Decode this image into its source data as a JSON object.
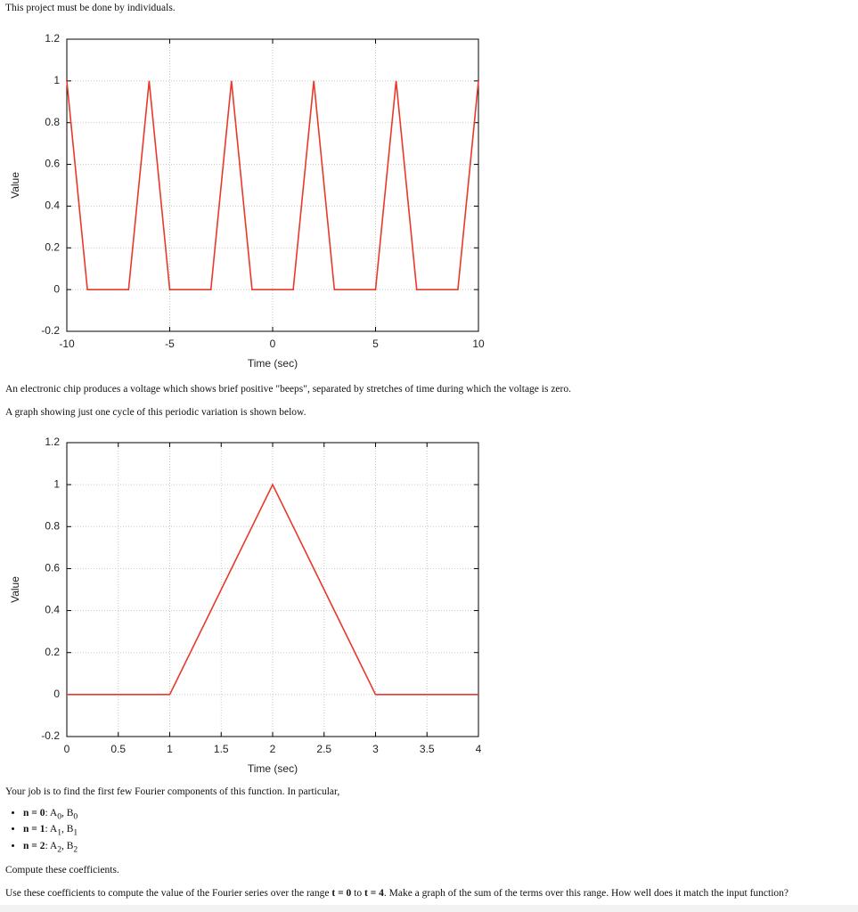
{
  "header": {
    "note": "This project must be done by individuals."
  },
  "chart_data": [
    {
      "type": "line",
      "xlabel": "Time (sec)",
      "ylabel": "Value",
      "color": "#e8392a",
      "grid": true,
      "x": [
        -10,
        -9,
        -7,
        -6,
        -5,
        -3,
        -2,
        -1,
        1,
        2,
        3,
        5,
        6,
        7,
        9,
        10
      ],
      "values": [
        1,
        0,
        0,
        1,
        0,
        0,
        1,
        0,
        0,
        1,
        0,
        0,
        1,
        0,
        0,
        1
      ],
      "xlim": [
        -10,
        10
      ],
      "xticks": [
        -10,
        -5,
        0,
        5,
        10
      ],
      "ylim": [
        -0.2,
        1.2
      ],
      "yticks": [
        -0.2,
        0,
        0.2,
        0.4,
        0.6,
        0.8,
        1,
        1.2
      ]
    },
    {
      "type": "line",
      "xlabel": "Time (sec)",
      "ylabel": "Value",
      "color": "#e8392a",
      "grid": true,
      "x": [
        0,
        1,
        2,
        3,
        4
      ],
      "values": [
        0,
        0,
        1,
        0,
        0
      ],
      "xlim": [
        0,
        4
      ],
      "xticks": [
        0,
        0.5,
        1,
        1.5,
        2,
        2.5,
        3,
        3.5,
        4
      ],
      "ylim": [
        -0.2,
        1.2
      ],
      "yticks": [
        -0.2,
        0,
        0.2,
        0.4,
        0.6,
        0.8,
        1,
        1.2
      ]
    }
  ],
  "paragraphs": [
    "An electronic chip produces a voltage which shows brief positive \"beeps\", separated by stretches of time during which the voltage is zero.",
    "A graph showing just one cycle of this periodic variation is shown below.",
    "Your job is to find the first few Fourier components of this function. In particular,",
    "Compute these coefficients."
  ],
  "list": [
    {
      "n": "n = 0",
      "a": "A",
      "b": "B",
      "sub": "0"
    },
    {
      "n": "n = 1",
      "a": "A",
      "b": "B",
      "sub": "1"
    },
    {
      "n": "n = 2",
      "a": "A",
      "b": "B",
      "sub": "2"
    }
  ],
  "final": [
    "Use these coefficients to compute the value of the Fourier series over the range ",
    "t = 0",
    " to ",
    "t = 4",
    ". Make a graph of the sum of the terms over this range. How well does it match the input function?"
  ]
}
